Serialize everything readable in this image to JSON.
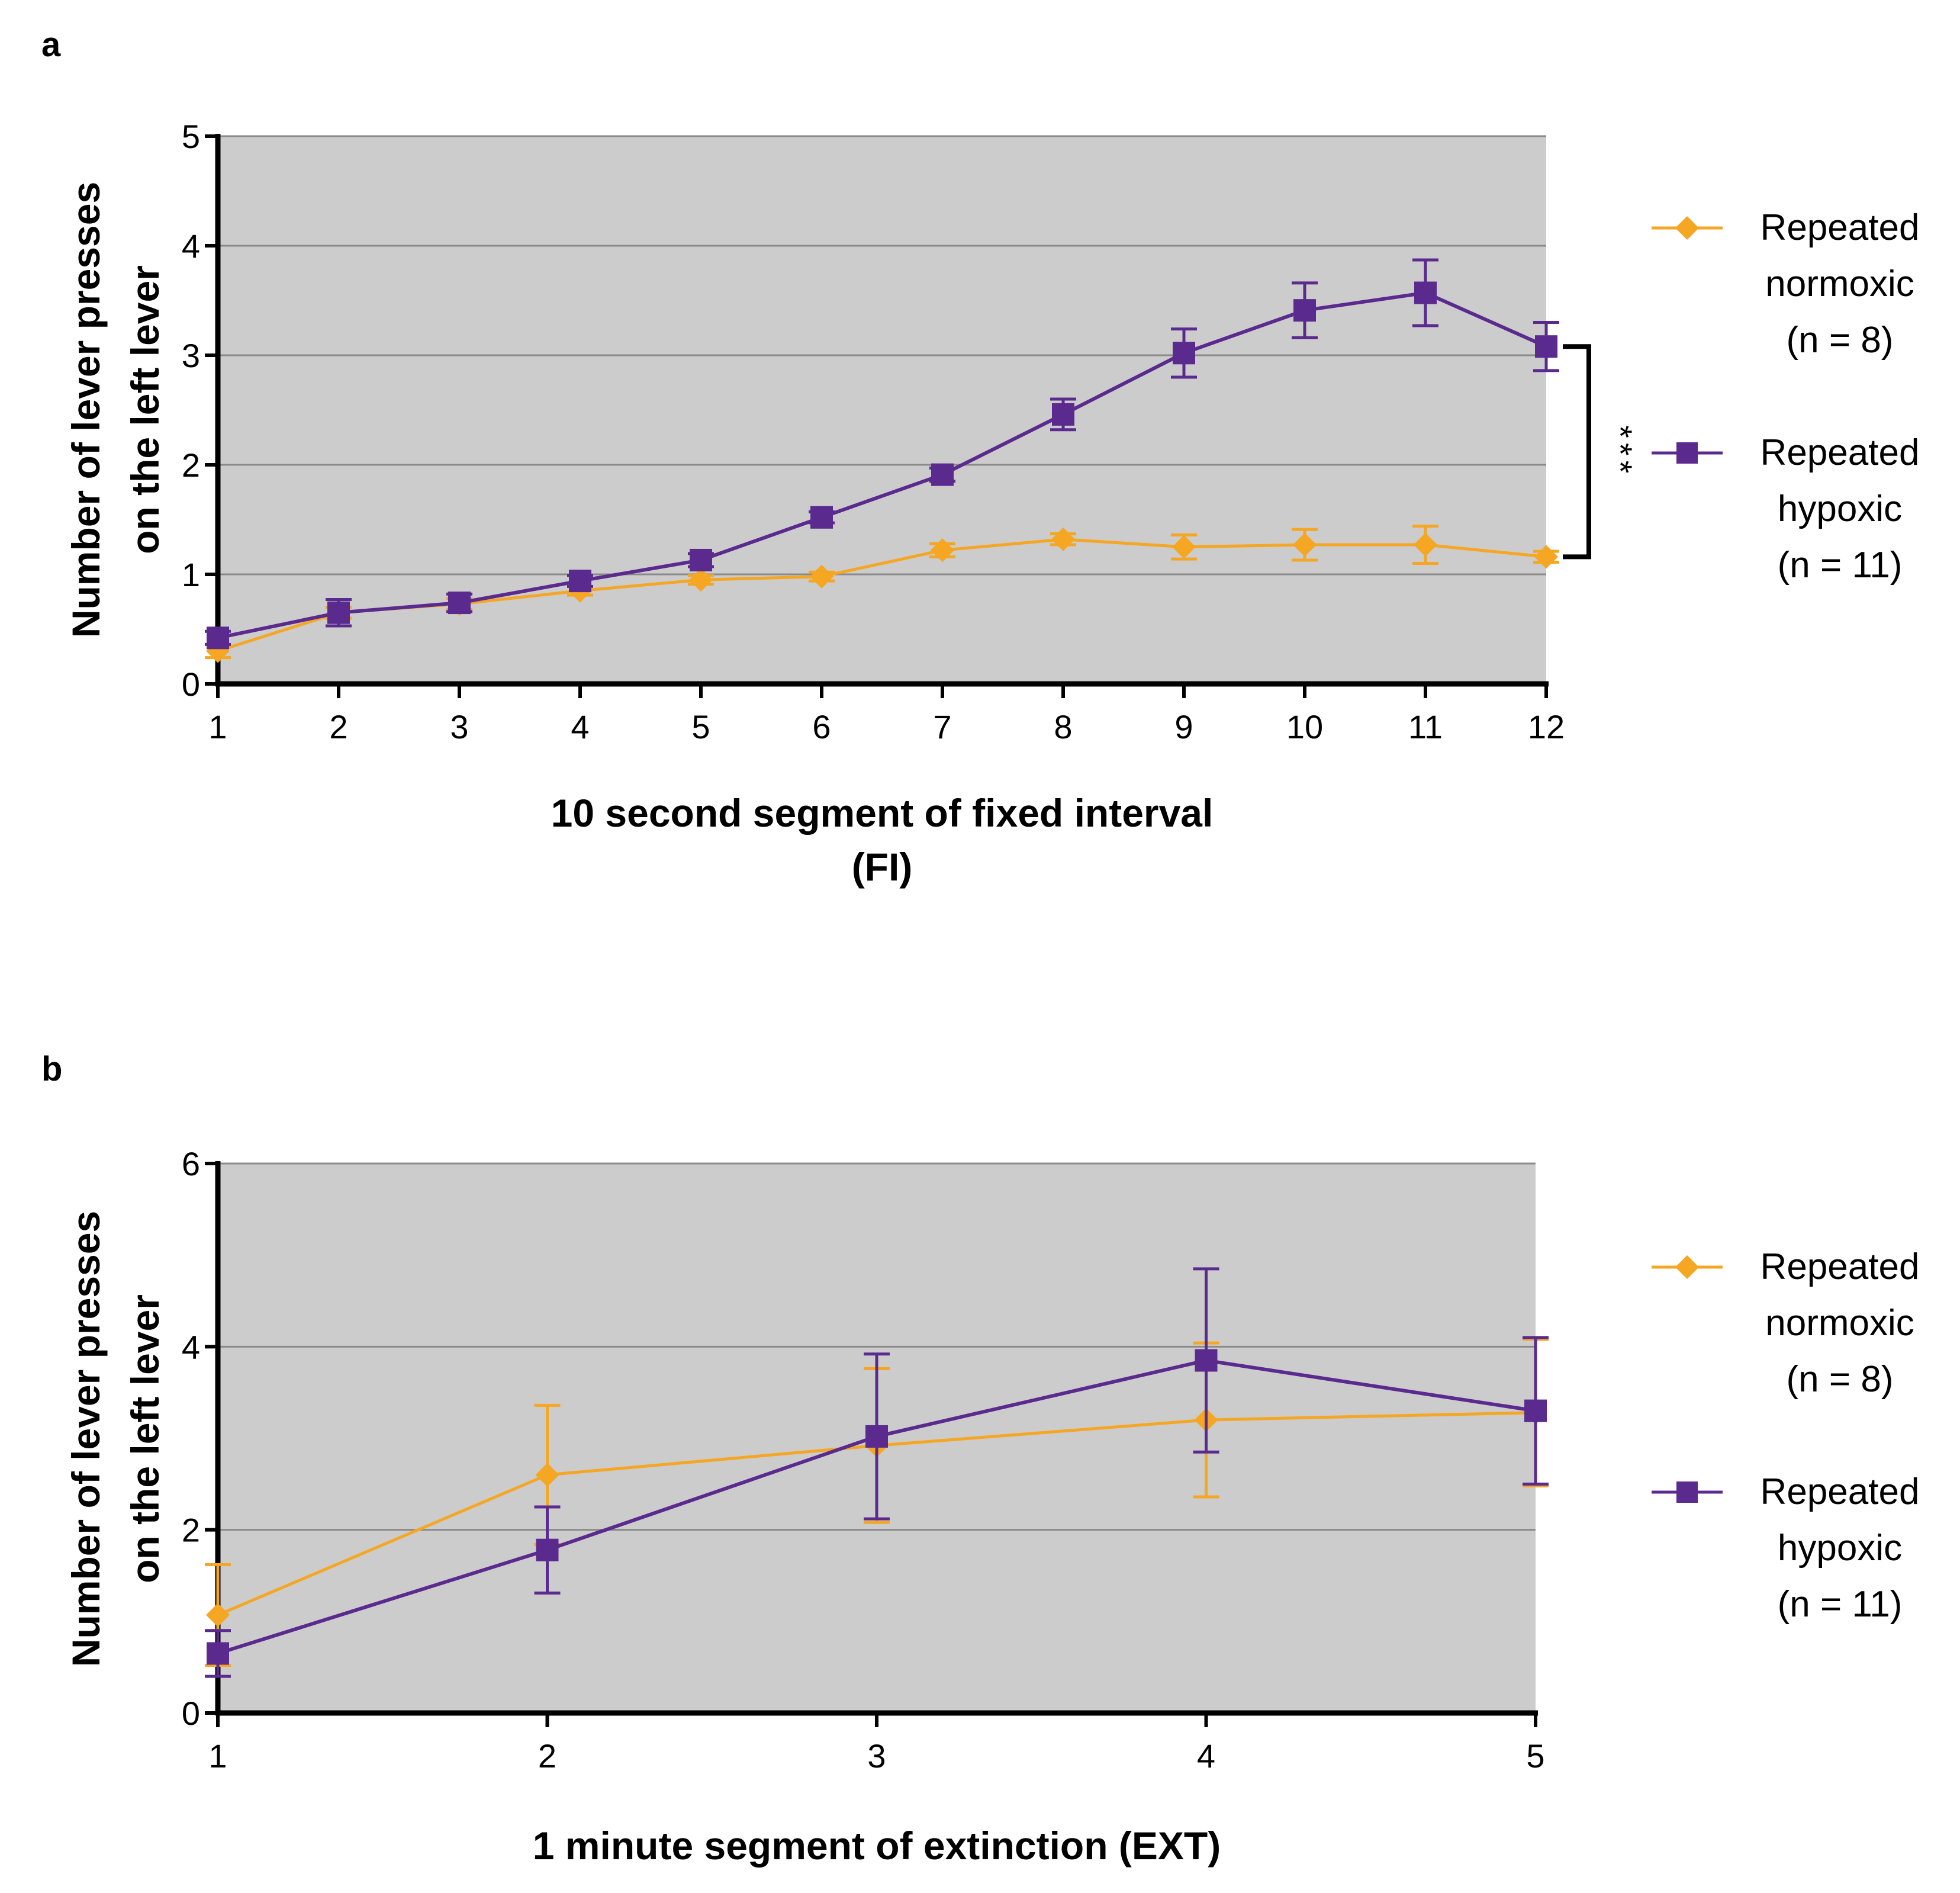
{
  "chart_data": [
    {
      "panel_label": "a",
      "type": "line",
      "xlabel": [
        "10 second segment of fixed interval",
        "(FI)"
      ],
      "ylabel": [
        "Number of lever presses",
        "on the left lever"
      ],
      "categories": [
        "1",
        "2",
        "3",
        "4",
        "5",
        "6",
        "7",
        "8",
        "9",
        "10",
        "11",
        "12"
      ],
      "x": [
        1,
        2,
        3,
        4,
        5,
        6,
        7,
        8,
        9,
        10,
        11,
        12
      ],
      "xlim": [
        1,
        12
      ],
      "ylim": [
        0,
        5
      ],
      "yticks": [
        0,
        1,
        2,
        3,
        4,
        5
      ],
      "grid": true,
      "legend_position": "right",
      "series": [
        {
          "name": "Repeated normoxic (n = 8)",
          "legend_lines": [
            "Repeated",
            "normoxic",
            "(n = 8)"
          ],
          "marker": "diamond",
          "color": "#F5A623",
          "values": [
            0.3,
            0.65,
            0.73,
            0.85,
            0.95,
            0.98,
            1.22,
            1.32,
            1.25,
            1.27,
            1.27,
            1.16
          ],
          "errors": [
            0.06,
            0.05,
            0.05,
            0.04,
            0.04,
            0.04,
            0.06,
            0.05,
            0.11,
            0.14,
            0.17,
            0.05
          ]
        },
        {
          "name": "Repeated hypoxic (n = 11)",
          "legend_lines": [
            "Repeated",
            "hypoxic",
            "(n = 11)"
          ],
          "marker": "square",
          "color": "#5B2A8E",
          "values": [
            0.42,
            0.65,
            0.74,
            0.94,
            1.13,
            1.52,
            1.91,
            2.46,
            3.02,
            3.41,
            3.57,
            3.08
          ],
          "errors": [
            0.06,
            0.12,
            0.08,
            0.05,
            0.06,
            0.05,
            0.06,
            0.14,
            0.22,
            0.25,
            0.3,
            0.22
          ]
        }
      ],
      "annotation": {
        "text": "***",
        "between_series_at_x": 12
      }
    },
    {
      "panel_label": "b",
      "type": "line",
      "xlabel": [
        "1 minute segment of extinction (EXT)"
      ],
      "ylabel": [
        "Number of lever presses",
        "on the left lever"
      ],
      "categories": [
        "1",
        "2",
        "3",
        "4",
        "5"
      ],
      "x": [
        1,
        2,
        3,
        4,
        5
      ],
      "xlim": [
        1,
        5
      ],
      "ylim": [
        0,
        6
      ],
      "yticks": [
        0,
        2,
        4,
        6
      ],
      "grid": true,
      "legend_position": "right",
      "series": [
        {
          "name": "Repeated normoxic (n = 8)",
          "legend_lines": [
            "Repeated",
            "normoxic",
            "(n = 8)"
          ],
          "marker": "diamond",
          "color": "#F5A623",
          "values": [
            1.07,
            2.6,
            2.92,
            3.2,
            3.28
          ],
          "errors": [
            0.55,
            0.76,
            0.84,
            0.84,
            0.8
          ]
        },
        {
          "name": "Repeated hypoxic (n = 11)",
          "legend_lines": [
            "Repeated",
            "hypoxic",
            "(n = 11)"
          ],
          "marker": "square",
          "color": "#5B2A8E",
          "values": [
            0.65,
            1.78,
            3.02,
            3.85,
            3.3
          ],
          "errors": [
            0.25,
            0.47,
            0.9,
            1.0,
            0.8
          ]
        }
      ]
    }
  ]
}
